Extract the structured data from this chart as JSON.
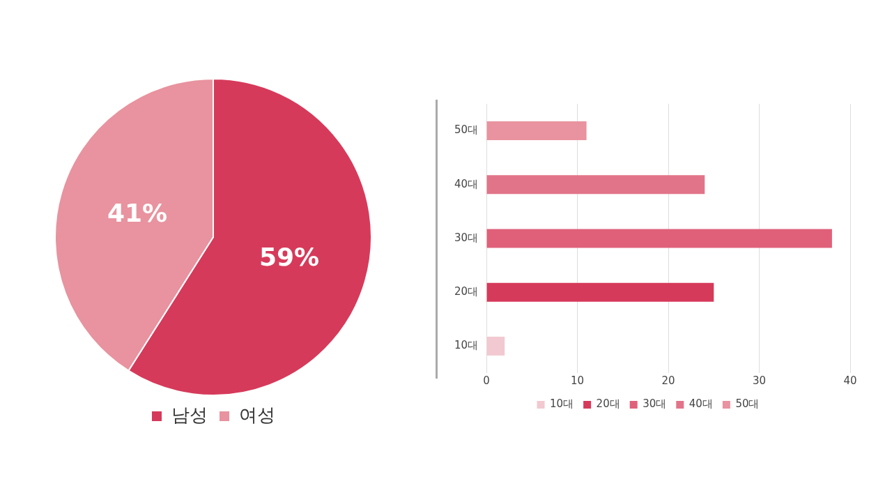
{
  "chart_data": [
    {
      "type": "pie",
      "categories": [
        "남성",
        "여성"
      ],
      "values": [
        59,
        41
      ],
      "colors": [
        "#d63a5a",
        "#e8939f"
      ],
      "value_labels": [
        "59%",
        "41%"
      ],
      "legend": "bottom"
    },
    {
      "type": "bar",
      "orientation": "horizontal",
      "stacked": true,
      "categories": [
        "50대",
        "40대",
        "30대",
        "20대",
        "10대"
      ],
      "series": [
        {
          "name": "10대",
          "color": "#f2c9d1",
          "values": [
            null,
            null,
            null,
            null,
            2
          ]
        },
        {
          "name": "20대",
          "color": "#d63a5a",
          "values": [
            null,
            null,
            null,
            25,
            null
          ]
        },
        {
          "name": "30대",
          "color": "#e0607a",
          "values": [
            null,
            null,
            38,
            null,
            null
          ]
        },
        {
          "name": "40대",
          "color": "#e27489",
          "values": [
            null,
            24,
            null,
            null,
            null
          ]
        },
        {
          "name": "50대",
          "color": "#e8939f",
          "values": [
            11,
            null,
            null,
            null,
            null
          ]
        }
      ],
      "xlim": [
        0,
        40
      ],
      "xticks": [
        0,
        10,
        20,
        30,
        40
      ],
      "grid": "x",
      "legend": "bottom"
    }
  ]
}
